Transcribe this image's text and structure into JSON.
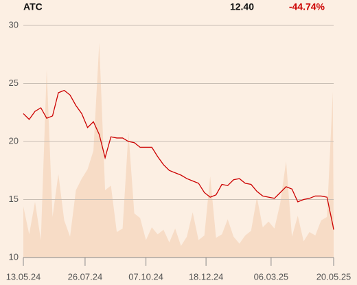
{
  "chart_data": {
    "type": "line",
    "header": {
      "symbol": "ATC",
      "price": "12.40",
      "change": "-44.74%"
    },
    "change_color": "#cc0000",
    "x": [
      "2024-05-13",
      "2024-05-20",
      "2024-05-27",
      "2024-06-03",
      "2024-06-10",
      "2024-06-17",
      "2024-06-24",
      "2024-07-01",
      "2024-07-08",
      "2024-07-15",
      "2024-07-22",
      "2024-07-29",
      "2024-08-05",
      "2024-08-12",
      "2024-08-19",
      "2024-08-26",
      "2024-09-02",
      "2024-09-09",
      "2024-09-16",
      "2024-09-23",
      "2024-09-30",
      "2024-10-07",
      "2024-10-14",
      "2024-10-21",
      "2024-10-28",
      "2024-11-04",
      "2024-11-11",
      "2024-11-18",
      "2024-11-25",
      "2024-12-02",
      "2024-12-09",
      "2024-12-16",
      "2024-12-23",
      "2024-12-30",
      "2025-01-06",
      "2025-01-13",
      "2025-01-20",
      "2025-01-27",
      "2025-02-03",
      "2025-02-10",
      "2025-02-17",
      "2025-02-24",
      "2025-03-03",
      "2025-03-10",
      "2025-03-17",
      "2025-03-24",
      "2025-03-31",
      "2025-04-07",
      "2025-04-14",
      "2025-04-21",
      "2025-04-28",
      "2025-05-05",
      "2025-05-12",
      "2025-05-19",
      "2025-05-20"
    ],
    "values": [
      22.4,
      21.9,
      22.6,
      22.9,
      22.0,
      22.2,
      24.2,
      24.4,
      24.0,
      23.1,
      22.4,
      21.2,
      21.7,
      20.6,
      18.6,
      20.4,
      20.3,
      20.3,
      20.0,
      19.9,
      19.5,
      19.5,
      19.5,
      18.7,
      18.0,
      17.5,
      17.3,
      17.1,
      16.8,
      16.6,
      16.4,
      15.6,
      15.2,
      15.4,
      16.3,
      16.2,
      16.7,
      16.8,
      16.4,
      16.3,
      15.7,
      15.3,
      15.2,
      15.1,
      15.6,
      16.1,
      15.9,
      14.8,
      15.0,
      15.1,
      15.3,
      15.3,
      15.2,
      12.8,
      12.4
    ],
    "color": "#cc0000",
    "volume": {
      "color": "#f7dcc6",
      "values": [
        14.4,
        12.0,
        14.8,
        11.5,
        26.2,
        13.5,
        17.2,
        13.2,
        11.8,
        15.8,
        16.8,
        17.6,
        19.2,
        28.5,
        15.8,
        16.2,
        12.2,
        12.5,
        20.8,
        13.8,
        13.4,
        11.5,
        12.6,
        12.0,
        12.4,
        11.3,
        12.5,
        11.0,
        11.8,
        13.9,
        11.5,
        11.9,
        17.0,
        11.7,
        12.0,
        13.3,
        11.8,
        11.2,
        11.9,
        12.3,
        15.2,
        12.6,
        13.1,
        12.5,
        14.7,
        18.3,
        11.8,
        13.6,
        11.4,
        12.2,
        11.9,
        13.2,
        13.5,
        24.3,
        12.4
      ]
    },
    "xlim": [
      "2024-05-13",
      "2025-05-20"
    ],
    "xticks": [
      {
        "value": "2024-05-13",
        "label": "13.05.24"
      },
      {
        "value": "2024-07-26",
        "label": "26.07.24"
      },
      {
        "value": "2024-10-07",
        "label": "07.10.24"
      },
      {
        "value": "2024-12-18",
        "label": "18.12.24"
      },
      {
        "value": "2025-03-06",
        "label": "06.03.25"
      },
      {
        "value": "2025-05-20",
        "label": "20.05.25"
      }
    ],
    "ylim": [
      10,
      30
    ],
    "yticks": [
      10,
      15,
      20,
      25,
      30
    ],
    "grid": true
  }
}
